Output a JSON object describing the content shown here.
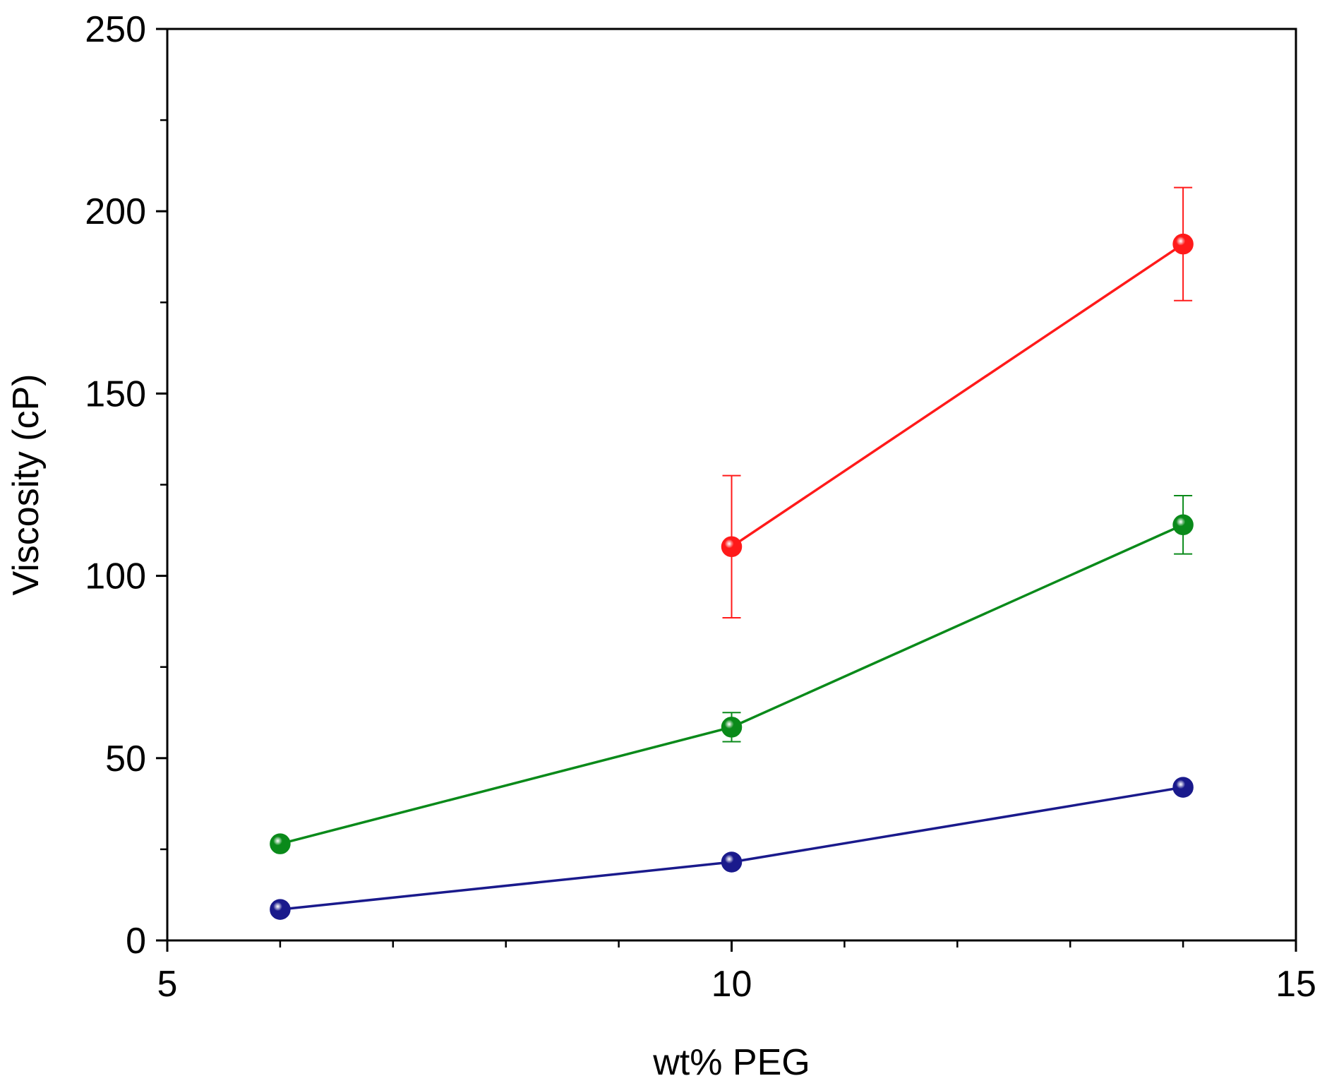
{
  "chart_data": {
    "type": "line",
    "title": "",
    "xlabel": "wt% PEG",
    "ylabel": "Viscosity (cP)",
    "xlim": [
      5,
      15
    ],
    "ylim": [
      0,
      250
    ],
    "x_ticks": [
      5,
      10,
      15
    ],
    "x_minor_step": 1,
    "y_ticks": [
      0,
      50,
      100,
      150,
      200,
      250
    ],
    "y_minor_step": 25,
    "grid": false,
    "legend": "none",
    "series": [
      {
        "name": "series-navy",
        "color": "#1a1a8c",
        "points": [
          {
            "x": 6,
            "y": 8.5,
            "err": 0
          },
          {
            "x": 10,
            "y": 21.5,
            "err": 0
          },
          {
            "x": 14,
            "y": 42,
            "err": 0
          }
        ]
      },
      {
        "name": "series-green",
        "color": "#0a8a1a",
        "points": [
          {
            "x": 6,
            "y": 26.5,
            "err": 0
          },
          {
            "x": 10,
            "y": 58.5,
            "err": 4
          },
          {
            "x": 14,
            "y": 114,
            "err": 8
          }
        ]
      },
      {
        "name": "series-red",
        "color": "#ff1a1a",
        "points": [
          {
            "x": 10,
            "y": 108,
            "err": 19.5
          },
          {
            "x": 14,
            "y": 191,
            "err": 15.5
          }
        ]
      }
    ]
  }
}
